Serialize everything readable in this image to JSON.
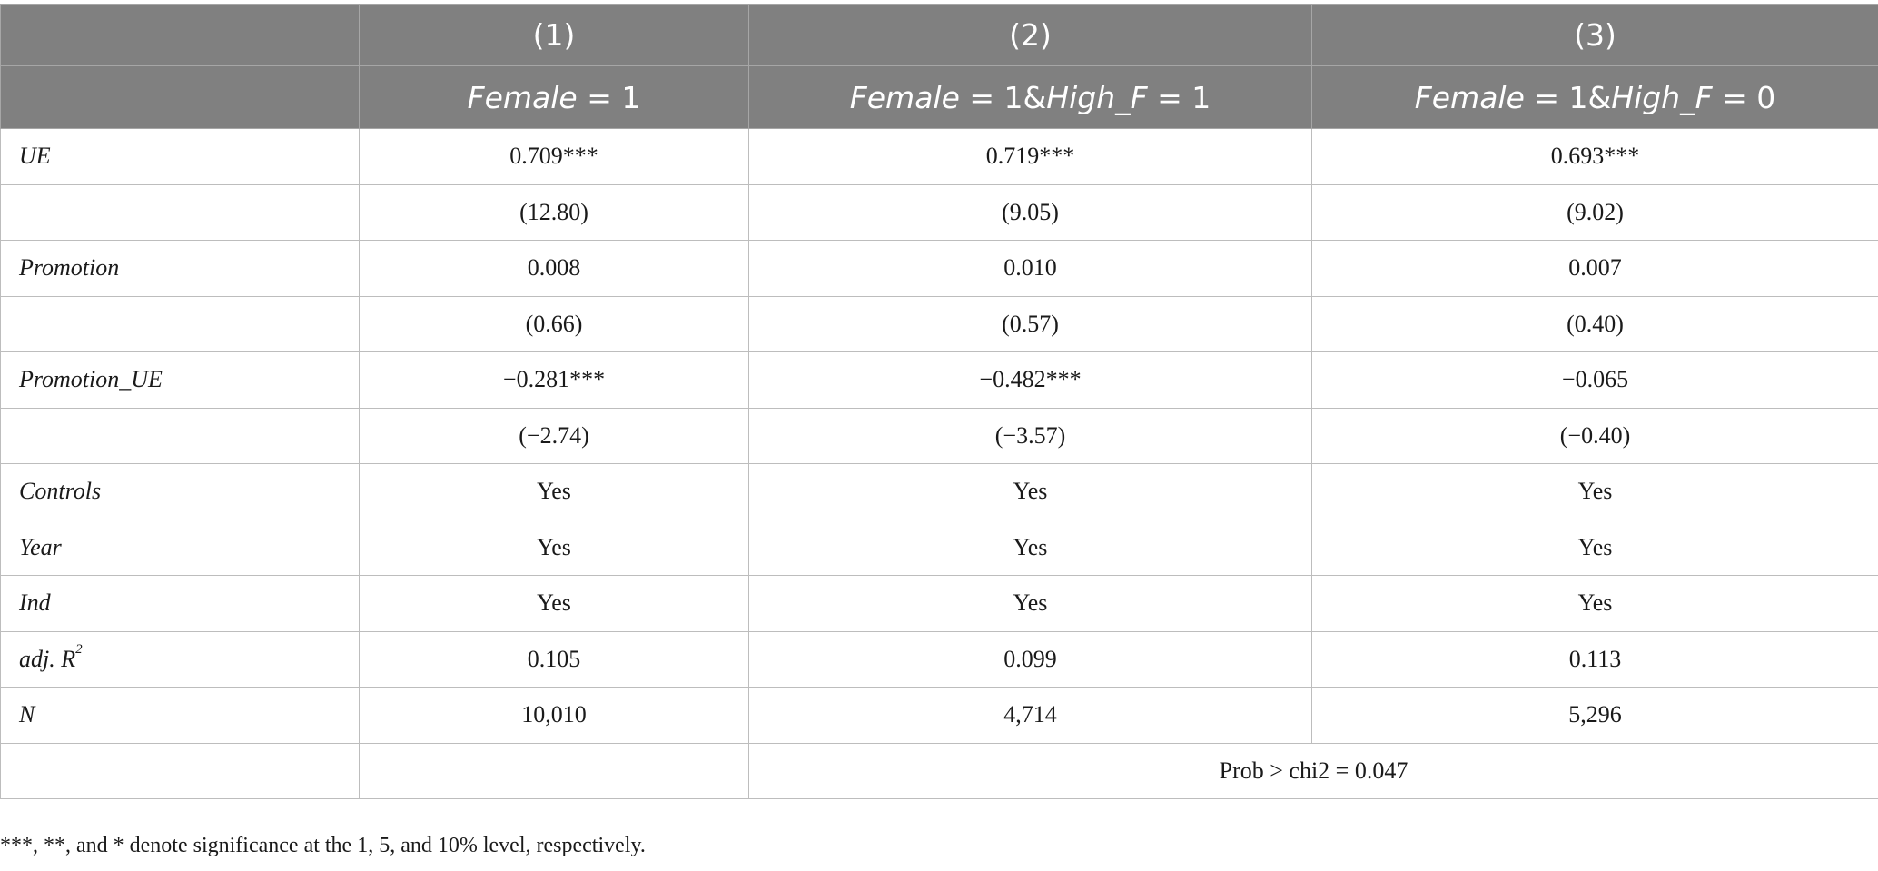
{
  "table": {
    "header": {
      "columns": [
        "",
        "(1)",
        "(2)",
        "(3)"
      ],
      "subheaders": [
        "",
        {
          "a": "Female",
          "b": " = 1",
          "c": "",
          "d": ""
        },
        {
          "a": "Female",
          "b": " = 1&",
          "c": "High_F",
          "d": " = 1"
        },
        {
          "a": "Female",
          "b": " = 1&",
          "c": "High_F",
          "d": " = 0"
        }
      ]
    },
    "rows": [
      {
        "label": "UE",
        "values": [
          "0.709***",
          "0.719***",
          "0.693***"
        ]
      },
      {
        "label": "",
        "values": [
          "(12.80)",
          "(9.05)",
          "(9.02)"
        ]
      },
      {
        "label": "Promotion",
        "values": [
          "0.008",
          "0.010",
          "0.007"
        ]
      },
      {
        "label": "",
        "values": [
          "(0.66)",
          "(0.57)",
          "(0.40)"
        ]
      },
      {
        "label": "Promotion_UE",
        "values": [
          "−0.281***",
          "−0.482***",
          "−0.065"
        ]
      },
      {
        "label": "",
        "values": [
          "(−2.74)",
          "(−3.57)",
          "(−0.40)"
        ]
      },
      {
        "label": "Controls",
        "values": [
          "Yes",
          "Yes",
          "Yes"
        ]
      },
      {
        "label": "Year",
        "values": [
          "Yes",
          "Yes",
          "Yes"
        ]
      },
      {
        "label": "Ind",
        "values": [
          "Yes",
          "Yes",
          "Yes"
        ]
      },
      {
        "label": "adj. R",
        "label_sup": "2",
        "values": [
          "0.105",
          "0.099",
          "0.113"
        ]
      },
      {
        "label": "N",
        "values": [
          "10,010",
          "4,714",
          "5,296"
        ]
      }
    ],
    "test_row": {
      "value": "Prob > chi2 = 0.047"
    }
  },
  "note": "***, **, and * denote significance at the 1, 5, and 10% level, respectively."
}
